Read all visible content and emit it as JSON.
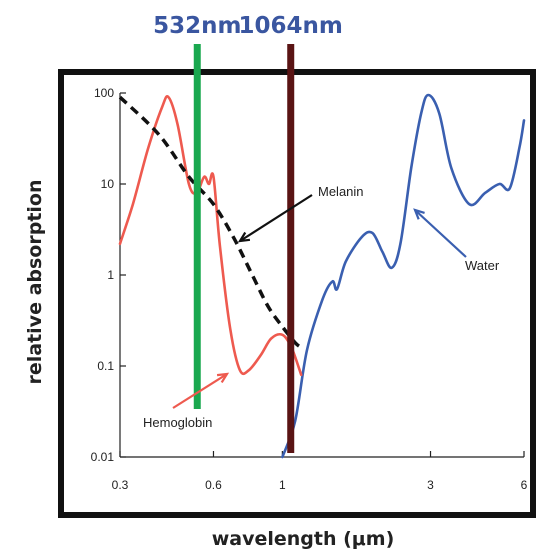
{
  "chart_data": {
    "type": "line",
    "xlabel": "wavelength (μm)",
    "ylabel": "relative absorption",
    "x_scale": "log",
    "y_scale": "log",
    "xlim": [
      0.3,
      6
    ],
    "ylim": [
      0.01,
      100
    ],
    "x_ticks": [
      "0.3",
      "0.6",
      "1",
      "3",
      "6"
    ],
    "y_ticks": [
      "0.01",
      "0.1",
      "1",
      "10",
      "100"
    ],
    "grid": false,
    "wavelength_markers": [
      {
        "label": "532nm",
        "x": 0.532,
        "color": "#1aa84f",
        "label_color": "#3a56a0"
      },
      {
        "label": "1064nm",
        "x": 1.064,
        "color": "#5a1414",
        "label_color": "#3a56a0"
      }
    ],
    "series": [
      {
        "name": "Hemoglobin",
        "color": "#ee5a4f",
        "style": "solid",
        "points": [
          [
            0.3,
            2.2
          ],
          [
            0.33,
            6
          ],
          [
            0.37,
            25
          ],
          [
            0.41,
            70
          ],
          [
            0.43,
            90
          ],
          [
            0.46,
            45
          ],
          [
            0.5,
            10
          ],
          [
            0.53,
            8
          ],
          [
            0.56,
            12
          ],
          [
            0.58,
            10
          ],
          [
            0.6,
            12
          ],
          [
            0.63,
            2
          ],
          [
            0.68,
            0.25
          ],
          [
            0.73,
            0.09
          ],
          [
            0.78,
            0.09
          ],
          [
            0.85,
            0.13
          ],
          [
            0.92,
            0.2
          ],
          [
            1.0,
            0.22
          ],
          [
            1.07,
            0.16
          ],
          [
            1.15,
            0.08
          ]
        ]
      },
      {
        "name": "Melanin",
        "color": "#111111",
        "style": "dashed",
        "points": [
          [
            0.3,
            90
          ],
          [
            0.4,
            35
          ],
          [
            0.5,
            12
          ],
          [
            0.6,
            6
          ],
          [
            0.7,
            2.5
          ],
          [
            0.8,
            1.0
          ],
          [
            0.9,
            0.45
          ],
          [
            1.0,
            0.27
          ],
          [
            1.1,
            0.18
          ],
          [
            1.15,
            0.16
          ]
        ]
      },
      {
        "name": "Water",
        "color": "#3a5fb0",
        "style": "solid",
        "points": [
          [
            1.0,
            0.01
          ],
          [
            1.1,
            0.025
          ],
          [
            1.2,
            0.15
          ],
          [
            1.35,
            0.55
          ],
          [
            1.45,
            0.85
          ],
          [
            1.5,
            0.7
          ],
          [
            1.6,
            1.4
          ],
          [
            1.8,
            2.6
          ],
          [
            1.95,
            2.9
          ],
          [
            2.1,
            1.8
          ],
          [
            2.25,
            1.2
          ],
          [
            2.4,
            2.2
          ],
          [
            2.6,
            15
          ],
          [
            2.8,
            60
          ],
          [
            2.95,
            95
          ],
          [
            3.2,
            60
          ],
          [
            3.5,
            15
          ],
          [
            4.0,
            6
          ],
          [
            4.5,
            8
          ],
          [
            5.0,
            10
          ],
          [
            5.4,
            9
          ],
          [
            5.8,
            25
          ],
          [
            6.0,
            50
          ]
        ]
      }
    ],
    "annotations": [
      {
        "text": "Melanin",
        "series": "Melanin"
      },
      {
        "text": "Water",
        "series": "Water"
      },
      {
        "text": "Hemoglobin",
        "series": "Hemoglobin"
      }
    ]
  }
}
